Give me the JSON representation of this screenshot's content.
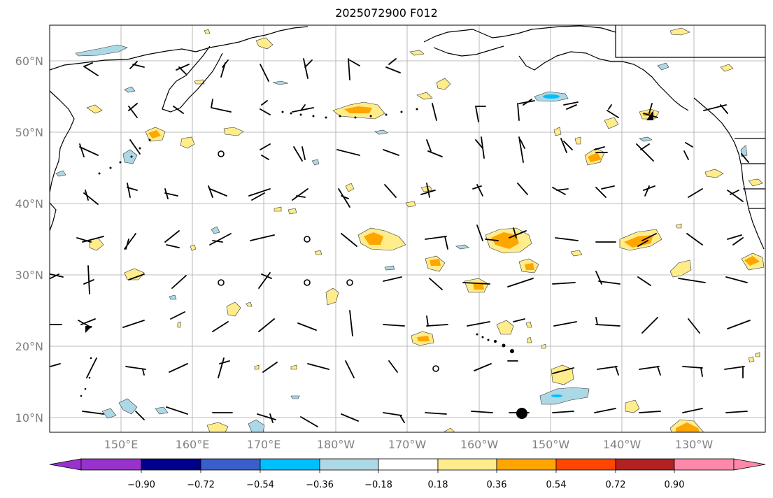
{
  "title": "2025072900 F012",
  "latitude_labels": [
    "60°N",
    "50°N",
    "40°N",
    "30°N",
    "20°N",
    "10°N"
  ],
  "longitude_labels": [
    "150°E",
    "160°E",
    "170°E",
    "180°W",
    "170°W",
    "160°W",
    "150°W",
    "140°W",
    "130°W"
  ],
  "colorbar": {
    "tick_labels": [
      "−0.90",
      "−0.72",
      "−0.54",
      "−0.36",
      "−0.18",
      "0.18",
      "0.36",
      "0.54",
      "0.72",
      "0.90"
    ],
    "colors": [
      "#9932cc",
      "#00008b",
      "#3a5fcd",
      "#00bfff",
      "#add8e6",
      "#ffffff",
      "#ffec8b",
      "#ffa500",
      "#ff4500",
      "#b22222",
      "#ff88aa"
    ]
  },
  "colors": {
    "grid": "#a9a9a9",
    "coast": "#000000",
    "text_axis": "#808080"
  }
}
